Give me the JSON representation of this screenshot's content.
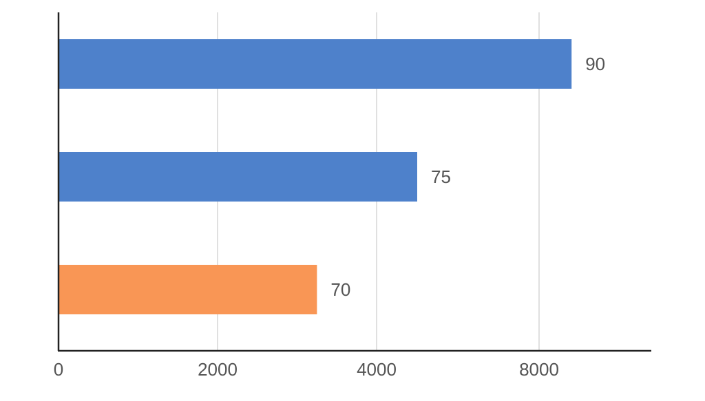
{
  "chart_data": {
    "type": "bar",
    "orientation": "horizontal",
    "categories": [
      "",
      "",
      ""
    ],
    "values": [
      8800,
      5000,
      3250
    ],
    "data_labels": [
      "90",
      "75",
      "70"
    ],
    "bar_colors": [
      "#4E81CB",
      "#4E81CB",
      "#F99655"
    ],
    "xticks": [
      0,
      2000,
      4000,
      8000
    ],
    "xlim": [
      0,
      9000
    ],
    "grid": "vertical",
    "title": "",
    "xlabel": "",
    "ylabel": ""
  }
}
